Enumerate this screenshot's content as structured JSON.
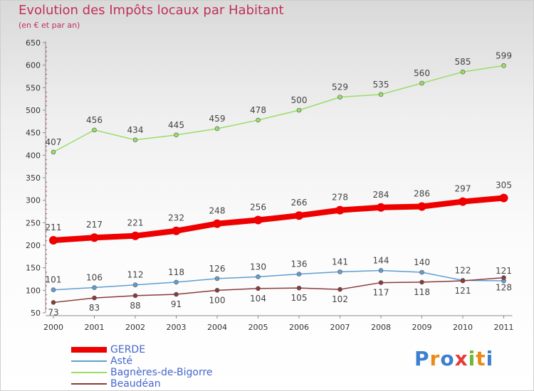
{
  "title": "Evolution des Impôts locaux par Habitant",
  "subtitle": "(en € et par an)",
  "logo": {
    "text": "Proxiti",
    "letter_colors": [
      "#3a7fd0",
      "#e98b18",
      "#3a7fd0",
      "#e43b3b",
      "#6cb83a",
      "#e98b18",
      "#3a7fd0"
    ]
  },
  "chart_data": {
    "type": "line",
    "title": "Evolution des Impôts locaux par Habitant",
    "subtitle": "(en € et par an)",
    "xlabel": "",
    "ylabel": "",
    "categories": [
      "2000",
      "2001",
      "2002",
      "2003",
      "2004",
      "2005",
      "2006",
      "2007",
      "2008",
      "2009",
      "2010",
      "2011"
    ],
    "ylim": [
      50,
      650
    ],
    "yticks": [
      50,
      100,
      150,
      200,
      250,
      300,
      350,
      400,
      450,
      500,
      550,
      600,
      650
    ],
    "grid": false,
    "legend_position": "bottom-left",
    "series": [
      {
        "name": "GERDE",
        "color": "#ee0000",
        "style": "thick",
        "values": [
          211,
          217,
          221,
          232,
          248,
          256,
          266,
          278,
          284,
          286,
          297,
          305
        ],
        "labels": [
          "211",
          "217",
          "221",
          "232",
          "248",
          "256",
          "266",
          "278",
          "284",
          "286",
          "297",
          "305"
        ]
      },
      {
        "name": "Asté",
        "color": "#5f9ed0",
        "style": "thin",
        "values": [
          101,
          106,
          112,
          118,
          126,
          130,
          136,
          141,
          144,
          140,
          122,
          121
        ],
        "labels": [
          "101",
          "106",
          "112",
          "118",
          "126",
          "130",
          "136",
          "141",
          "144",
          "140",
          "122",
          "121"
        ]
      },
      {
        "name": "Bagnères-de-Bigorre",
        "color": "#99dd66",
        "style": "thin",
        "values": [
          407,
          456,
          434,
          445,
          459,
          478,
          500,
          529,
          535,
          560,
          585,
          599
        ],
        "labels": [
          "407",
          "456",
          "434",
          "445",
          "459",
          "478",
          "500",
          "529",
          "535",
          "560",
          "585",
          "599"
        ]
      },
      {
        "name": "Beaudéan",
        "color": "#8a3a3a",
        "style": "thin",
        "values": [
          73,
          83,
          88,
          91,
          100,
          104,
          105,
          102,
          117,
          118,
          121,
          128
        ],
        "labels": [
          "73",
          "83",
          "88",
          "91",
          "100",
          "104",
          "105",
          "102",
          "117",
          "118",
          "121",
          "128"
        ]
      }
    ]
  }
}
